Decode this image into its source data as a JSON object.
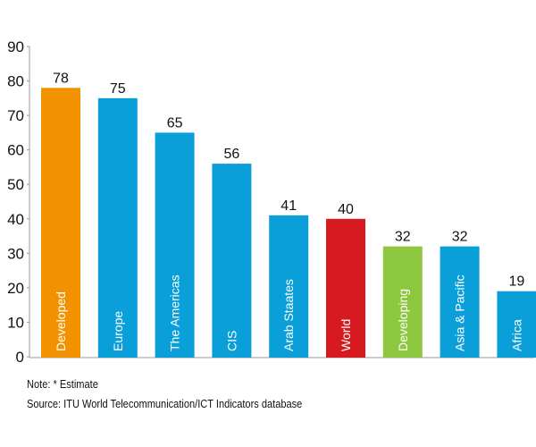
{
  "chart_data": {
    "type": "bar",
    "categories": [
      "Developed",
      "Europe",
      "The Americas",
      "CIS",
      "Arab Staates",
      "World",
      "Developing",
      "Asia & Pacific",
      "Africa"
    ],
    "values": [
      78,
      75,
      65,
      56,
      41,
      40,
      32,
      32,
      19
    ],
    "colors": [
      "#f39200",
      "#0a9fd8",
      "#0a9fd8",
      "#0a9fd8",
      "#0a9fd8",
      "#d71920",
      "#8dc63f",
      "#0a9fd8",
      "#0a9fd8"
    ],
    "ylim": [
      0,
      90
    ],
    "yticks": [
      0,
      10,
      20,
      30,
      40,
      50,
      60,
      70,
      80,
      90
    ],
    "grid": false,
    "title": "",
    "xlabel": "",
    "ylabel": ""
  },
  "notes": {
    "note": "Note: * Estimate",
    "source": "Source: ITU World Telecommunication/ICT Indicators database"
  }
}
